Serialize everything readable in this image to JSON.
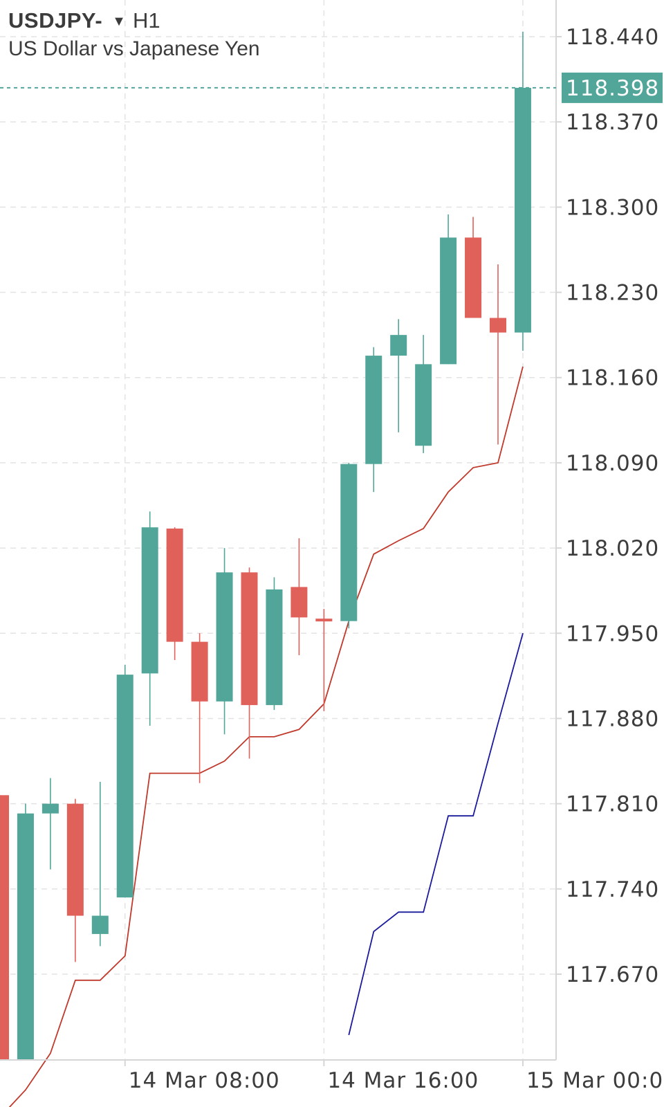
{
  "header": {
    "symbol": "USDJPY-",
    "dropdown_icon": "caret-down-icon",
    "dropdown_glyph": "▼",
    "timeframe": "H1",
    "description": "US Dollar vs Japanese Yen"
  },
  "colors": {
    "bull": "#52a699",
    "bear": "#e0605a",
    "red_line": "#c0392b",
    "blue_line": "#1a1a9c",
    "grid": "#e3e3e3",
    "axis": "#d6d6d6",
    "current_price": "#52a699"
  },
  "chart_data": {
    "type": "candlestick",
    "symbol": "USDJPY-",
    "timeframe": "H1",
    "y_ticks": [
      "118.440",
      "118.370",
      "118.300",
      "118.230",
      "118.160",
      "118.090",
      "118.020",
      "117.950",
      "117.880",
      "117.810",
      "117.740",
      "117.670"
    ],
    "x_ticks": [
      {
        "label": "14 Mar 08:00",
        "index": 5
      },
      {
        "label": "14 Mar 16:00",
        "index": 13
      },
      {
        "label": "15 Mar 00:00",
        "index": 21
      }
    ],
    "grid": true,
    "current_price": "118.398",
    "current_price_value": 118.398,
    "candles": [
      {
        "o": 117.817,
        "h": 117.817,
        "l": 117.6,
        "c": 117.6
      },
      {
        "o": 117.6,
        "h": 117.81,
        "l": 117.6,
        "c": 117.802
      },
      {
        "o": 117.802,
        "h": 117.831,
        "l": 117.756,
        "c": 117.81
      },
      {
        "o": 117.81,
        "h": 117.814,
        "l": 117.68,
        "c": 117.718
      },
      {
        "o": 117.703,
        "h": 117.828,
        "l": 117.693,
        "c": 117.718
      },
      {
        "o": 117.733,
        "h": 117.924,
        "l": 117.733,
        "c": 117.916
      },
      {
        "o": 117.917,
        "h": 118.05,
        "l": 117.874,
        "c": 118.037
      },
      {
        "o": 118.036,
        "h": 118.037,
        "l": 117.928,
        "c": 117.943
      },
      {
        "o": 117.943,
        "h": 117.95,
        "l": 117.827,
        "c": 117.894
      },
      {
        "o": 117.894,
        "h": 118.02,
        "l": 117.867,
        "c": 118.0
      },
      {
        "o": 118.0,
        "h": 118.004,
        "l": 117.847,
        "c": 117.891
      },
      {
        "o": 117.891,
        "h": 117.996,
        "l": 117.887,
        "c": 117.986
      },
      {
        "o": 117.988,
        "h": 118.028,
        "l": 117.932,
        "c": 117.963
      },
      {
        "o": 117.962,
        "h": 117.97,
        "l": 117.886,
        "c": 117.96
      },
      {
        "o": 117.96,
        "h": 118.09,
        "l": 117.954,
        "c": 118.089
      },
      {
        "o": 118.089,
        "h": 118.185,
        "l": 118.066,
        "c": 118.178
      },
      {
        "o": 118.178,
        "h": 118.208,
        "l": 118.115,
        "c": 118.195
      },
      {
        "o": 118.104,
        "h": 118.195,
        "l": 118.098,
        "c": 118.171
      },
      {
        "o": 118.171,
        "h": 118.294,
        "l": 118.171,
        "c": 118.275
      },
      {
        "o": 118.275,
        "h": 118.292,
        "l": 118.209,
        "c": 118.209
      },
      {
        "o": 118.209,
        "h": 118.253,
        "l": 118.105,
        "c": 118.197
      },
      {
        "o": 118.197,
        "h": 118.444,
        "l": 118.182,
        "c": 118.398
      }
    ],
    "series": [
      {
        "values": [
          117.553,
          117.575,
          117.605,
          117.665,
          117.665,
          117.685,
          117.835,
          117.835,
          117.835,
          117.845,
          117.865,
          117.865,
          117.871,
          117.892,
          117.96,
          118.015,
          118.026,
          118.036,
          118.066,
          118.086,
          118.09,
          118.169
        ]
      },
      {
        "values": [
          null,
          null,
          null,
          null,
          null,
          null,
          null,
          null,
          null,
          null,
          null,
          null,
          null,
          null,
          117.62,
          117.705,
          117.721,
          117.721,
          117.8,
          117.8,
          117.876,
          117.95
        ]
      }
    ]
  }
}
